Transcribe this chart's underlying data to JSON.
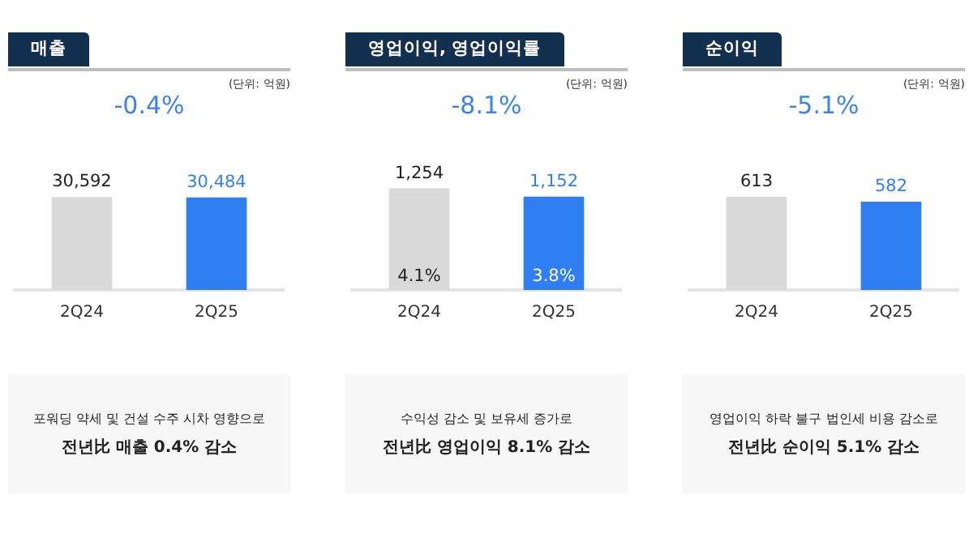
{
  "chart_data": [
    {
      "type": "bar",
      "title": "매출",
      "subtitle": "-0.4%",
      "categories": [
        "2Q24",
        "2Q25"
      ],
      "values": [
        30592,
        30484
      ],
      "value_labels": [
        "30,592",
        "30,484"
      ],
      "colors": [
        "#d9d9d9",
        "#2f7ff2"
      ],
      "grid": false,
      "legend": false,
      "annotations": [
        "(단위: 억원)",
        "포워딩 약세 및 건설 수주 시차 영향으로",
        "전년比 매출 0.4% 감소"
      ]
    },
    {
      "type": "bar",
      "title": "영업이익, 영업이익률",
      "subtitle": "-8.1%",
      "categories": [
        "2Q24",
        "2Q25"
      ],
      "values": [
        1254,
        1152
      ],
      "value_labels": [
        "1,254",
        "1,152"
      ],
      "colors": [
        "#d9d9d9",
        "#2f7ff2"
      ],
      "grid": false,
      "legend": false,
      "annotations": [
        "(단위: 억원)",
        "수익성 감소 및 보유세 증가로",
        "전년比 영업이익 8.1% 감소",
        "4.1%",
        "3.8%"
      ]
    },
    {
      "type": "bar",
      "title": "순이익",
      "subtitle": "-5.1%",
      "categories": [
        "2Q24",
        "2Q25"
      ],
      "values": [
        613,
        582
      ],
      "value_labels": [
        "613",
        "582"
      ],
      "colors": [
        "#d9d9d9",
        "#2f7ff2"
      ],
      "grid": false,
      "legend": false,
      "annotations": [
        "(단위: 억원)",
        "영업이익 하락 불구 법인세 비용 감소로",
        "전년比 순이익 5.1% 감소"
      ]
    }
  ]
}
